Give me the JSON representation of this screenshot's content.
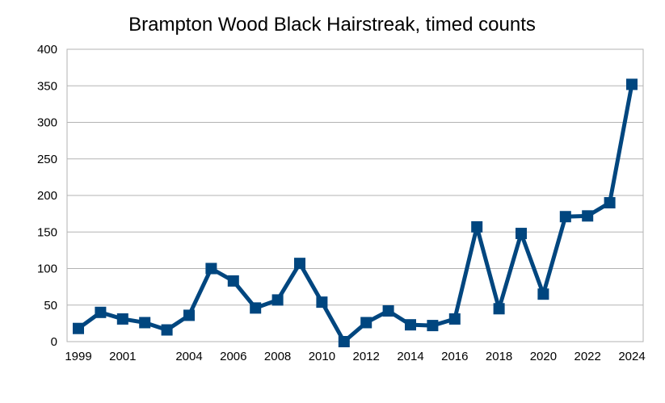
{
  "chart_data": {
    "type": "line",
    "title": "Brampton Wood Black Hairstreak, timed counts",
    "xlabel": "",
    "ylabel": "",
    "ylim": [
      0,
      400
    ],
    "yticks": [
      0,
      50,
      100,
      150,
      200,
      250,
      300,
      350,
      400
    ],
    "xtick_labels": [
      "1999",
      "2001",
      "2004",
      "2006",
      "2008",
      "2010",
      "2012",
      "2014",
      "2016",
      "2018",
      "2020",
      "2022",
      "2024"
    ],
    "grid": true,
    "legend": "none",
    "color": "#00467f",
    "marker": "square",
    "series": [
      {
        "points": [
          {
            "x": 1999,
            "y": 18
          },
          {
            "x": 2000,
            "y": 40
          },
          {
            "x": 2001,
            "y": 31
          },
          {
            "x": 2002,
            "y": 26
          },
          {
            "x": 2003,
            "y": 16
          },
          {
            "x": 2004,
            "y": 36
          },
          {
            "x": 2005,
            "y": 100
          },
          {
            "x": 2006,
            "y": 83
          },
          {
            "x": 2007,
            "y": 46
          },
          {
            "x": 2008,
            "y": 57
          },
          {
            "x": 2009,
            "y": 107
          },
          {
            "x": 2010,
            "y": 54
          },
          {
            "x": 2011,
            "y": 0
          },
          {
            "x": 2012,
            "y": 26
          },
          {
            "x": 2013,
            "y": 42
          },
          {
            "x": 2014,
            "y": 23
          },
          {
            "x": 2015,
            "y": 22
          },
          {
            "x": 2016,
            "y": 31
          },
          {
            "x": 2017,
            "y": 157
          },
          {
            "x": 2018,
            "y": 45
          },
          {
            "x": 2019,
            "y": 148
          },
          {
            "x": 2020,
            "y": 65
          },
          {
            "x": 2021,
            "y": 171
          },
          {
            "x": 2022,
            "y": 172
          },
          {
            "x": 2023,
            "y": 190
          },
          {
            "x": 2024,
            "y": 352
          }
        ]
      }
    ]
  }
}
